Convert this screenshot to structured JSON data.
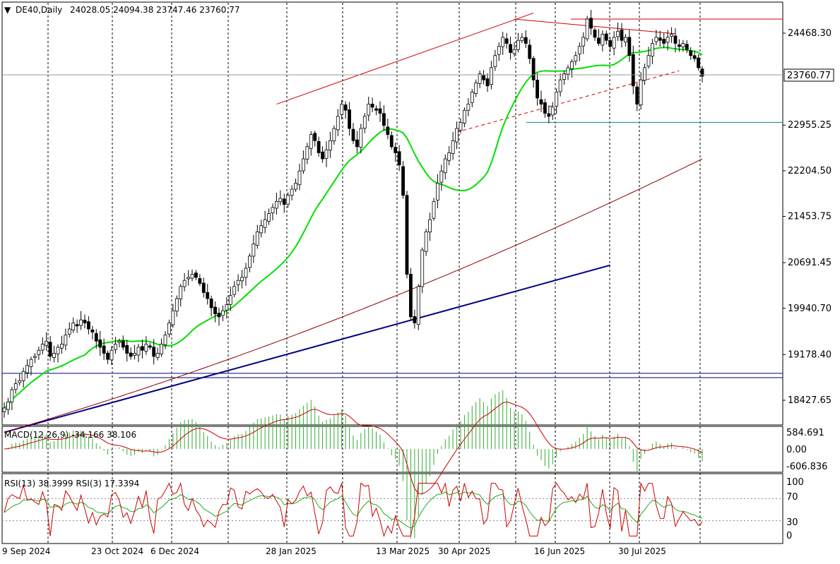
{
  "symbol_line": {
    "arrow": "▼",
    "symbol": "DE40,Daily",
    "ohlc": "24028.05 24094.38 23747.46 23760.77"
  },
  "price_axis": {
    "ticks": [
      "24468.30",
      "22955.25",
      "22204.50",
      "21453.75",
      "20691.45",
      "19940.70",
      "19178.40",
      "18427.65"
    ],
    "tick_values": [
      24468.3,
      22955.25,
      22204.5,
      21453.75,
      20691.45,
      19940.7,
      19178.4,
      18427.65
    ],
    "last_price_label": "23760.77",
    "last_price": 23760.77
  },
  "macd": {
    "label": "MACD(12,26,9) -34.166 38.106",
    "ticks": [
      "584.691",
      "0.00",
      "-606.836"
    ]
  },
  "rsi": {
    "label": "RSI(13) 38.3999  RSI(3) 17.3394",
    "ticks": [
      "100",
      "70",
      "30",
      "0"
    ]
  },
  "time_axis": {
    "labels": [
      "9 Sep 2024",
      "23 Oct 2024",
      "6 Dec 2024",
      "28 Jan 2025",
      "13 Mar 2025",
      "30 Apr 2025",
      "16 Jun 2025",
      "30 Jul 2025"
    ]
  },
  "colors": {
    "bull": "#00a000",
    "bear": "#000000",
    "ma_fast": "#00e000",
    "ma_slow": "#8b0000",
    "trend_blue": "#000080",
    "channel_red": "#cc0000",
    "support_teal": "#008b8b",
    "macd_hist": "#33aa33",
    "macd_signal": "#cc0000",
    "rsi_slow": "#22aa22",
    "rsi_fast": "#cc0000"
  },
  "chart_data": {
    "type": "candlestick",
    "timeframe": "Daily",
    "ylim": [
      18000,
      24900
    ],
    "candles": {
      "open_close_series": [
        18300,
        18400,
        18600,
        18700,
        18750,
        18900,
        19000,
        19100,
        19150,
        19250,
        19350,
        19400,
        19150,
        19200,
        19300,
        19350,
        19500,
        19600,
        19700,
        19650,
        19750,
        19700,
        19600,
        19550,
        19400,
        19300,
        19200,
        19100,
        19250,
        19350,
        19400,
        19300,
        19200,
        19150,
        19200,
        19300,
        19250,
        19350,
        19300,
        19150,
        19200,
        19350,
        19500,
        19700,
        19900,
        20100,
        20300,
        20400,
        20450,
        20500,
        20450,
        20350,
        20200,
        20100,
        19950,
        19850,
        19800,
        19900,
        20000,
        20150,
        20300,
        20400,
        20450,
        20600,
        20800,
        21000,
        21200,
        21300,
        21400,
        21500,
        21600,
        21700,
        21750,
        21650,
        21800,
        21900,
        22000,
        22200,
        22400,
        22600,
        22800,
        22700,
        22500,
        22400,
        22550,
        22700,
        22900,
        23100,
        23300,
        23200,
        22900,
        22700,
        22600,
        22900,
        23100,
        23300,
        23250,
        23200,
        23150,
        22950,
        22800,
        22600,
        22500,
        22300,
        21800,
        20500,
        19800,
        19700,
        20300,
        20900,
        21200,
        21400,
        21700,
        22000,
        22200,
        22400,
        22500,
        22700,
        22900,
        23000,
        23200,
        23300,
        23500,
        23650,
        23800,
        23700,
        23600,
        23900,
        24100,
        24250,
        24400,
        24300,
        24150,
        24200,
        24350,
        24400,
        24300,
        24050,
        23700,
        23400,
        23300,
        23150,
        23100,
        23250,
        23500,
        23700,
        23800,
        23900,
        24000,
        24100,
        24250,
        24400,
        24700,
        24550,
        24400,
        24300,
        24450,
        24350,
        24250,
        24400,
        24500,
        24350,
        24400,
        24100,
        23600,
        23300,
        23700,
        23900,
        24100,
        24300,
        24400,
        24350,
        24300,
        24400,
        24450,
        24300,
        24250,
        24300,
        24200,
        24100,
        24050,
        23900,
        23760.77
      ],
      "note": "approximate daily close path read from the plot"
    },
    "moving_averages": [
      {
        "name": "",
        "color": "ma_fast",
        "values_start_end": [
          18300,
          24150
        ]
      },
      {
        "name": "",
        "color": "ma_slow",
        "values_start_end": [
          17900,
          22400
        ]
      }
    ],
    "trendlines": [
      {
        "kind": "long uptrend",
        "from": [
          0,
          17900
        ],
        "to": [
          158,
          20650
        ]
      },
      {
        "kind": "horizontal support",
        "value": 18870
      },
      {
        "kind": "horizontal support",
        "value": 18800
      },
      {
        "kind": "horizontal support",
        "value": 23000
      },
      {
        "kind": "channel upper",
        "from": [
          71,
          23300
        ],
        "to": [
          138,
          24800
        ]
      },
      {
        "kind": "top resistance",
        "from": [
          133,
          24700
        ],
        "to": [
          175,
          24460
        ]
      },
      {
        "kind": "top horizontal",
        "value": 24700
      },
      {
        "kind": "channel lower (dashed)",
        "from": [
          118,
          22840
        ],
        "to": [
          176,
          23850
        ]
      }
    ],
    "macd": {
      "upper": 584.691,
      "zero": 0.0,
      "lower": -606.836
    },
    "rsi": {
      "levels": [
        100,
        70,
        30,
        0
      ]
    }
  }
}
